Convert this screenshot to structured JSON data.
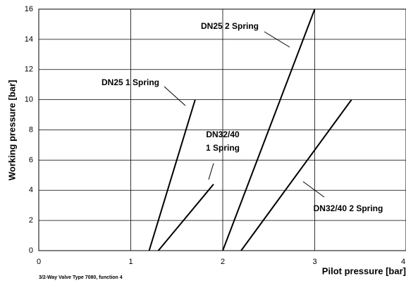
{
  "chart_data": {
    "type": "line",
    "x_label": "Pilot pressure [bar]",
    "y_label": "Working pressure [bar]",
    "footnote": "3/2-Way Valve Type 7080,  function 4",
    "series": [
      {
        "color": "#000000",
        "x": [
          1.2,
          1.7
        ],
        "values": [
          0,
          10
        ]
      },
      {
        "color": "#000000",
        "x": [
          1.3,
          1.9
        ],
        "values": [
          0,
          4.4
        ]
      },
      {
        "color": "#000000",
        "x": [
          2,
          3
        ],
        "values": [
          0,
          16
        ]
      },
      {
        "color": "#000000",
        "x": [
          2.2,
          3.4
        ],
        "values": [
          0,
          10
        ]
      }
    ],
    "annotations": [
      {
        "lines": [
          "DN25 1 Spring"
        ]
      },
      {
        "lines": [
          "DN32/40",
          "1 Spring"
        ]
      },
      {
        "lines": [
          "DN25 2 Spring"
        ]
      },
      {
        "lines": [
          "DN32/40 2 Spring"
        ]
      }
    ],
    "xlim": [
      0,
      4
    ],
    "xticks": [
      0,
      1,
      2,
      3,
      4
    ],
    "ylim": [
      0,
      16
    ],
    "yticks": [
      0,
      2,
      4,
      6,
      8,
      10,
      12,
      14,
      16
    ],
    "grid": true
  }
}
